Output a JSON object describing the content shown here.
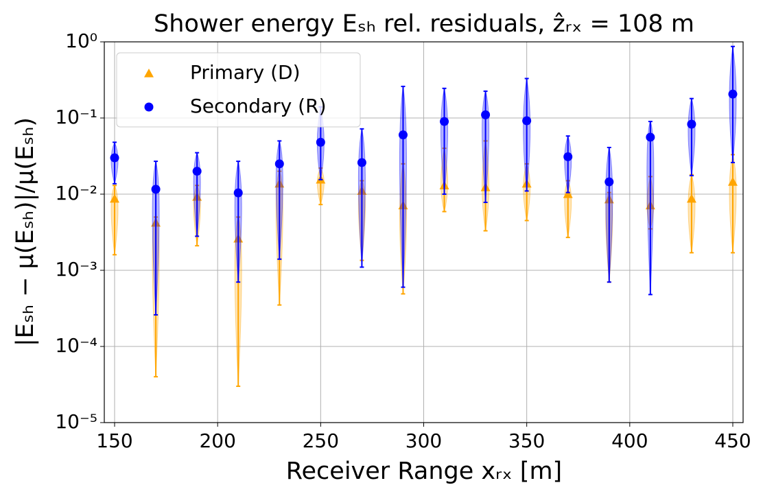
{
  "chart_data": {
    "type": "violin",
    "title": "Shower energy Eₛₕ rel. residuals, ẑᵣₓ = 108 m",
    "xlabel": "Receiver Range xᵣₓ [m]",
    "ylabel": "|Eₛₕ − μ(Eₛₕ)|/μ(Eₛₕ)",
    "x": [
      150,
      170,
      190,
      210,
      230,
      250,
      270,
      290,
      310,
      330,
      350,
      370,
      390,
      410,
      430,
      450
    ],
    "series": [
      {
        "name": "Primary (D)",
        "color": "#ffa500",
        "marker": "triangle",
        "values": [
          0.0087,
          0.0042,
          0.0092,
          0.0026,
          0.0137,
          0.0155,
          0.011,
          0.0071,
          0.013,
          0.0123,
          0.0137,
          0.01,
          0.0085,
          0.0071,
          0.0087,
          0.0145
        ],
        "min": [
          0.0016,
          4e-05,
          0.0021,
          3e-05,
          0.00035,
          0.0073,
          0.00135,
          0.00049,
          0.0059,
          0.0033,
          0.0045,
          0.0027,
          0.0007,
          0.0035,
          0.0017,
          0.0017
        ],
        "max": [
          0.013,
          0.005,
          0.013,
          0.005,
          0.02,
          0.022,
          0.015,
          0.025,
          0.04,
          0.05,
          0.025,
          0.015,
          0.0105,
          0.017,
          0.018,
          0.033
        ]
      },
      {
        "name": "Secondary (R)",
        "color": "#0000ff",
        "marker": "circle",
        "values": [
          0.03,
          0.0116,
          0.02,
          0.0104,
          0.025,
          0.048,
          0.026,
          0.06,
          0.09,
          0.11,
          0.092,
          0.031,
          0.0145,
          0.056,
          0.083,
          0.206
        ],
        "min": [
          0.0137,
          0.00026,
          0.0028,
          0.0007,
          0.0014,
          0.0155,
          0.0011,
          0.0006,
          0.01,
          0.0078,
          0.011,
          0.0105,
          0.0007,
          0.00048,
          0.0175,
          0.026
        ],
        "max": [
          0.048,
          0.027,
          0.035,
          0.027,
          0.05,
          0.14,
          0.072,
          0.26,
          0.245,
          0.225,
          0.33,
          0.058,
          0.041,
          0.09,
          0.18,
          0.87
        ]
      }
    ],
    "xlim": [
      145,
      455
    ],
    "xticks": [
      150,
      200,
      250,
      300,
      350,
      400,
      450
    ],
    "ylim": [
      1e-05,
      1
    ],
    "yscale": "log",
    "yticks": [
      {
        "value": 1,
        "label": "10⁰"
      },
      {
        "value": 0.1,
        "label": "10⁻¹"
      },
      {
        "value": 0.01,
        "label": "10⁻²"
      },
      {
        "value": 0.001,
        "label": "10⁻³"
      },
      {
        "value": 0.0001,
        "label": "10⁻⁴"
      },
      {
        "value": 1e-05,
        "label": "10⁻⁵"
      }
    ],
    "grid": true,
    "legend": "upper left"
  }
}
